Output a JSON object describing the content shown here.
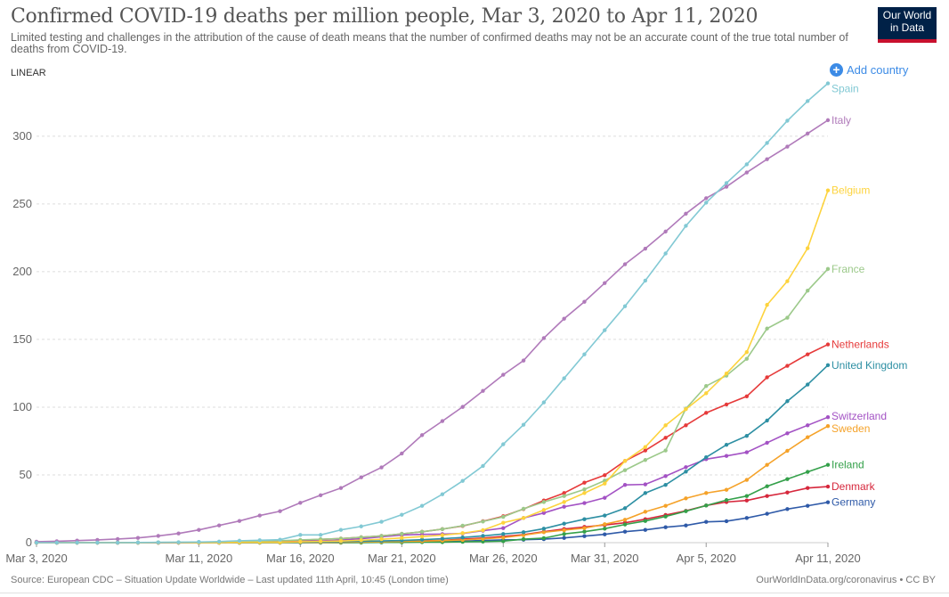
{
  "header": {
    "title": "Confirmed COVID-19 deaths per million people, Mar 3, 2020 to Apr 11, 2020",
    "subtitle": "Limited testing and challenges in the attribution of the cause of death means that the number of confirmed deaths may not be an accurate count of the true total number of deaths from COVID-19.",
    "logo_text": "Our World in Data",
    "scale_toggle": "LINEAR",
    "add_country": "Add country"
  },
  "footer": {
    "source": "Source: European CDC – Situation Update Worldwide – Last updated 11th April, 10:45 (London time)",
    "credit": "OurWorldInData.org/coronavirus • CC BY"
  },
  "chart_data": {
    "type": "line",
    "title": "Confirmed COVID-19 deaths per million people, Mar 3, 2020 to Apr 11, 2020",
    "xlabel": "",
    "ylabel": "",
    "scale": "linear",
    "grid": "horizontal dashed",
    "legend": "inline labels at line ends (right)",
    "ylim": [
      0,
      340
    ],
    "xlim": [
      "2020-03-03",
      "2020-04-11"
    ],
    "yticks": [
      0,
      50,
      100,
      150,
      200,
      250,
      300
    ],
    "xticks": [
      {
        "date": "2020-03-03",
        "label": "Mar 3, 2020"
      },
      {
        "date": "2020-03-11",
        "label": "Mar 11, 2020"
      },
      {
        "date": "2020-03-16",
        "label": "Mar 16, 2020"
      },
      {
        "date": "2020-03-21",
        "label": "Mar 21, 2020"
      },
      {
        "date": "2020-03-26",
        "label": "Mar 26, 2020"
      },
      {
        "date": "2020-03-31",
        "label": "Mar 31, 2020"
      },
      {
        "date": "2020-04-05",
        "label": "Apr 5, 2020"
      },
      {
        "date": "2020-04-11",
        "label": "Apr 11, 2020"
      }
    ],
    "x": [
      "2020-03-03",
      "2020-03-04",
      "2020-03-05",
      "2020-03-06",
      "2020-03-07",
      "2020-03-08",
      "2020-03-09",
      "2020-03-10",
      "2020-03-11",
      "2020-03-12",
      "2020-03-13",
      "2020-03-14",
      "2020-03-15",
      "2020-03-16",
      "2020-03-17",
      "2020-03-18",
      "2020-03-19",
      "2020-03-20",
      "2020-03-21",
      "2020-03-22",
      "2020-03-23",
      "2020-03-24",
      "2020-03-25",
      "2020-03-26",
      "2020-03-27",
      "2020-03-28",
      "2020-03-29",
      "2020-03-30",
      "2020-03-31",
      "2020-04-01",
      "2020-04-02",
      "2020-04-03",
      "2020-04-04",
      "2020-04-05",
      "2020-04-06",
      "2020-04-07",
      "2020-04-08",
      "2020-04-09",
      "2020-04-10",
      "2020-04-11"
    ],
    "series": [
      {
        "name": "Spain",
        "color": "#82c9d4",
        "values": [
          0,
          0,
          0,
          0,
          0,
          0.1,
          0.2,
          0.3,
          0.5,
          0.8,
          1.4,
          1.8,
          2.2,
          5.7,
          5.7,
          9.4,
          12,
          15.4,
          20.6,
          27.2,
          35.7,
          45.6,
          56.6,
          72.6,
          87,
          103.5,
          121.3,
          139,
          156.8,
          174.5,
          193.4,
          213.4,
          233.8,
          250.9,
          265.4,
          279.2,
          295,
          311.4,
          325.9,
          339
        ]
      },
      {
        "name": "Italy",
        "color": "#b07aba",
        "values": [
          0.7,
          1,
          1.5,
          2,
          2.7,
          3.5,
          5,
          6.8,
          9.4,
          12.7,
          16,
          20,
          23.2,
          29.4,
          35,
          40.3,
          48.2,
          55.5,
          65.8,
          79.4,
          89.7,
          100.2,
          112,
          123.9,
          134.4,
          151,
          165.3,
          177.8,
          191.6,
          205.5,
          217,
          229.6,
          242.8,
          254.2,
          262.7,
          273.2,
          283,
          292.3,
          302,
          311.8
        ]
      },
      {
        "name": "Belgium",
        "color": "#fdd33d",
        "values": [
          0,
          0,
          0,
          0,
          0,
          0,
          0,
          0,
          0,
          0,
          0.2,
          0.3,
          0.3,
          0.6,
          0.9,
          1.2,
          1.8,
          2.5,
          3.5,
          4.5,
          5.5,
          7,
          9.2,
          14.7,
          18.2,
          24.1,
          30,
          36.6,
          43.6,
          60.3,
          70.6,
          86.6,
          98.5,
          110.3,
          124.8,
          140.6,
          175.5,
          193,
          217.3,
          260
        ]
      },
      {
        "name": "France",
        "color": "#9cc98a",
        "values": [
          0,
          0,
          0,
          0,
          0,
          0,
          0.2,
          0.3,
          0.4,
          0.5,
          0.7,
          1.2,
          1.4,
          2,
          2.5,
          3,
          4,
          5,
          6.5,
          8,
          10,
          12.5,
          15.6,
          19,
          25,
          30,
          34.4,
          39.3,
          45.8,
          53.5,
          61,
          68,
          98.9,
          115.6,
          123.3,
          135.7,
          158,
          166,
          186,
          202
        ]
      },
      {
        "name": "Netherlands",
        "color": "#e63a3a",
        "values": [
          0,
          0,
          0,
          0,
          0,
          0,
          0,
          0,
          0.2,
          0.3,
          0.4,
          0.6,
          1,
          1.8,
          2.4,
          3,
          4,
          5,
          6.5,
          8,
          10,
          12.3,
          15.8,
          19.5,
          24.8,
          31.1,
          36.6,
          44.3,
          49.8,
          60.3,
          68,
          77.4,
          86.6,
          95.8,
          102,
          108,
          122,
          130.5,
          139,
          146.3
        ]
      },
      {
        "name": "United Kingdom",
        "color": "#2d8fa3",
        "values": [
          0,
          0,
          0,
          0,
          0,
          0,
          0,
          0,
          0,
          0,
          0,
          0.1,
          0.2,
          0.3,
          0.5,
          0.8,
          1,
          1.3,
          1.6,
          2.2,
          2.9,
          3.8,
          5,
          6.4,
          7.7,
          10.3,
          14,
          17.3,
          20,
          25.4,
          36.6,
          42.6,
          52.4,
          63,
          72.2,
          78.8,
          90.1,
          104.4,
          116.7,
          131
        ]
      },
      {
        "name": "Switzerland",
        "color": "#a352c4",
        "values": [
          0,
          0,
          0,
          0,
          0,
          0,
          0,
          0,
          0,
          0,
          0.2,
          0.3,
          0.5,
          1,
          1.3,
          1.9,
          2.9,
          4.3,
          5.6,
          6.1,
          6.3,
          6.8,
          8.8,
          10.7,
          18.2,
          21.9,
          26.5,
          29.2,
          33.1,
          42.6,
          43,
          49.1,
          55.7,
          61.6,
          64,
          66.7,
          73.7,
          80.7,
          86.6,
          92.6
        ]
      },
      {
        "name": "Sweden",
        "color": "#f5a229",
        "values": [
          0,
          0,
          0,
          0,
          0,
          0,
          0,
          0,
          0,
          0,
          0,
          0,
          0,
          0.1,
          0.2,
          0.4,
          0.5,
          0.7,
          0.9,
          1.1,
          1.5,
          2,
          2.8,
          3.7,
          5.5,
          7.7,
          9.2,
          10.7,
          13.6,
          16.9,
          22.8,
          27.2,
          32.7,
          36.6,
          39,
          46.3,
          57.4,
          67.8,
          77.8,
          86
        ]
      },
      {
        "name": "Ireland",
        "color": "#34a04a",
        "values": [
          0,
          0,
          0,
          0,
          0,
          0,
          0,
          0,
          0,
          0,
          0,
          0,
          0,
          0,
          0,
          0,
          0,
          0.2,
          0.2,
          0.4,
          0.4,
          0.6,
          0.8,
          1.1,
          2.6,
          3.3,
          6.4,
          8.1,
          10.3,
          13.4,
          16,
          19.3,
          23.2,
          27.4,
          31.4,
          34.4,
          41.6,
          46.9,
          52.2,
          57.4
        ]
      },
      {
        "name": "Denmark",
        "color": "#d6273c",
        "values": [
          0,
          0,
          0,
          0,
          0,
          0,
          0,
          0,
          0,
          0,
          0,
          0.2,
          0.3,
          0.5,
          0.5,
          0.6,
          0.7,
          0.9,
          1,
          1.4,
          1.7,
          2.6,
          3.4,
          4.6,
          5.9,
          8.1,
          10.1,
          11.6,
          13,
          14.7,
          17.3,
          20.4,
          23.5,
          27.4,
          30,
          31.1,
          34.4,
          37,
          40.3,
          41.4
        ]
      },
      {
        "name": "Germany",
        "color": "#2f5aa8",
        "values": [
          0,
          0,
          0,
          0,
          0,
          0,
          0,
          0,
          0,
          0,
          0,
          0,
          0,
          0,
          0,
          0,
          0.2,
          0.3,
          0.4,
          0.6,
          0.8,
          1.1,
          1.6,
          2,
          2.2,
          2.6,
          3.5,
          4.8,
          6.1,
          8.1,
          9.4,
          11.4,
          12.7,
          15.3,
          15.8,
          18.2,
          21.3,
          24.8,
          27.2,
          29.8
        ]
      }
    ]
  }
}
